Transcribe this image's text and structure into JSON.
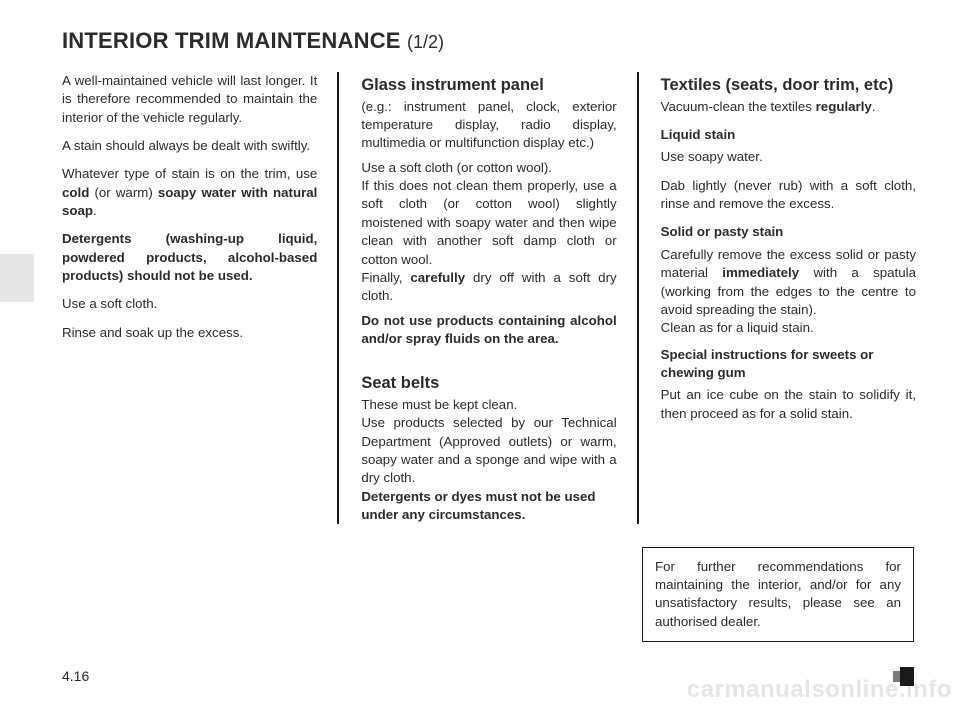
{
  "title_main": "INTERIOR TRIM MAINTENANCE ",
  "title_sub": "(1/2)",
  "page_number": "4.16",
  "watermark": "carmanualsonline.info",
  "col1": {
    "p1_a": "A well-maintained vehicle will last longer. It is therefore recommended to maintain the interior of the vehicle regularly.",
    "p2": "A stain should always be dealt with swiftly.",
    "p3_a": "Whatever type of stain is on the trim, use ",
    "p3_b": "cold",
    "p3_c": " (or warm) ",
    "p3_d": "soapy water with natural soap",
    "p3_e": ".",
    "p4": "Detergents (washing-up liquid, powdered products, alcohol-based products) should not be used.",
    "p5": "Use a soft cloth.",
    "p6": "Rinse and soak up the excess."
  },
  "col2": {
    "h1": "Glass instrument panel",
    "p1": "(e.g.: instrument panel, clock, exterior temperature display, radio display, multimedia or multifunction display etc.)",
    "p2": "Use a soft cloth (or cotton wool).",
    "p3": "If this does not clean them properly, use a soft cloth (or cotton wool) slightly moistened with soapy water and then wipe clean with another soft damp cloth or cotton wool.",
    "p4_a": "Finally, ",
    "p4_b": "carefully",
    "p4_c": " dry off with a soft dry cloth.",
    "p5": "Do not use products containing alcohol and/or spray fluids on the area.",
    "h2": "Seat belts",
    "p6": "These must be kept clean.",
    "p7": "Use products selected by our Technical Department (Approved outlets) or warm, soapy water and a sponge and wipe with a dry cloth.",
    "p8": "Detergents or dyes must not be used under any circumstances."
  },
  "col3": {
    "h1": "Textiles (seats, door trim, etc)",
    "p1_a": "Vacuum-clean the textiles ",
    "p1_b": "regularly",
    "p1_c": ".",
    "h2": "Liquid stain",
    "p2": "Use soapy water.",
    "p3": "Dab lightly (never rub) with a soft cloth, rinse and remove the excess.",
    "h3": "Solid or pasty stain",
    "p4_a": "Carefully remove the excess solid or pasty material ",
    "p4_b": "immediately",
    "p4_c": " with a spatula (working from the edges to the centre to avoid spreading the stain).",
    "p4_d": "Clean as for a liquid stain.",
    "h4": "Special instructions for sweets or chewing gum",
    "p5": "Put an ice cube on the stain to solidify it, then proceed as for a solid stain.",
    "info": "For further recommendations for maintaining the interior, and/or for any unsatisfactory results, please see an authorised dealer."
  }
}
